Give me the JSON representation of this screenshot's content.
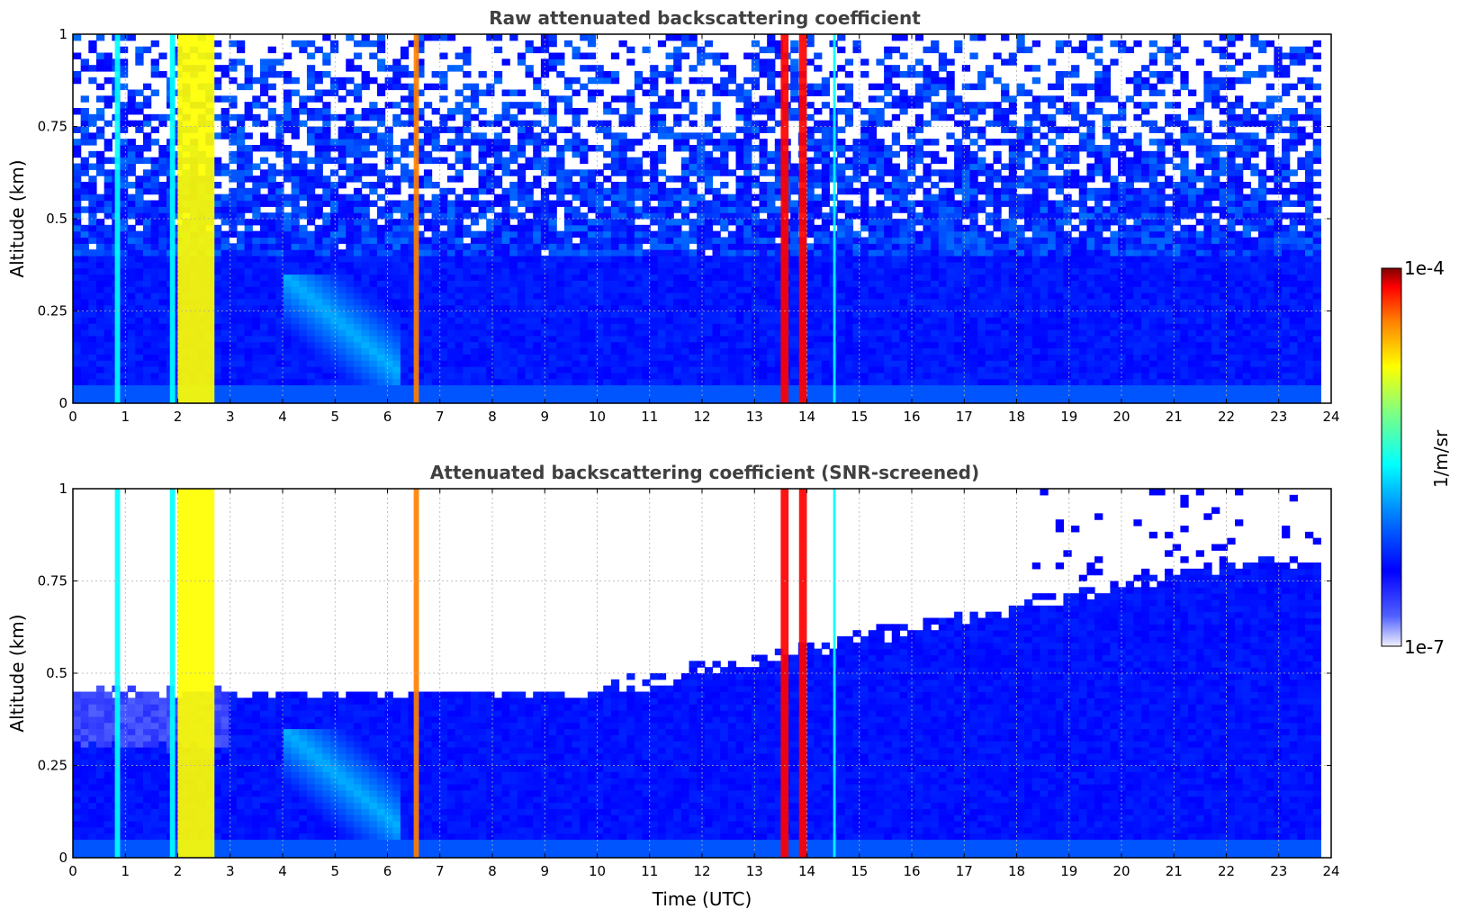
{
  "chart_data": [
    {
      "type": "heatmap",
      "id": "raw",
      "title": "Raw attenuated backscattering coefficient",
      "xlabel": "",
      "ylabel": "Altitude (km)",
      "xlim": [
        0,
        24
      ],
      "ylim": [
        0,
        1
      ],
      "xticks": [
        0,
        1,
        2,
        3,
        4,
        5,
        6,
        7,
        8,
        9,
        10,
        11,
        12,
        13,
        14,
        15,
        16,
        17,
        18,
        19,
        20,
        21,
        22,
        23,
        24
      ],
      "yticks": [
        0,
        0.25,
        0.5,
        0.75,
        1
      ],
      "ytick_labels": [
        "0",
        "0.25",
        "0.5",
        "0.75",
        "1"
      ],
      "grid": true,
      "noise_top_ratio": 1.0,
      "features": [
        {
          "x": 0.8,
          "width": 0.1,
          "value": "cyan"
        },
        {
          "x": 1.85,
          "width": 0.1,
          "value": "cyan"
        },
        {
          "x": 2.0,
          "width": 0.7,
          "value": "yellow"
        },
        {
          "x": 6.5,
          "width": 0.1,
          "value": "orange"
        },
        {
          "x": 13.5,
          "width": 0.15,
          "value": "red"
        },
        {
          "x": 13.85,
          "width": 0.15,
          "value": "red"
        },
        {
          "x": 14.5,
          "width": 0.05,
          "value": "cyan"
        }
      ]
    },
    {
      "type": "heatmap",
      "id": "screened",
      "title": "Attenuated backscattering coefficient (SNR-screened)",
      "xlabel": "Time (UTC)",
      "ylabel": "Altitude (km)",
      "xlim": [
        0,
        24
      ],
      "ylim": [
        0,
        1
      ],
      "xticks": [
        0,
        1,
        2,
        3,
        4,
        5,
        6,
        7,
        8,
        9,
        10,
        11,
        12,
        13,
        14,
        15,
        16,
        17,
        18,
        19,
        20,
        21,
        22,
        23,
        24
      ],
      "yticks": [
        0,
        0.25,
        0.5,
        0.75,
        1
      ],
      "ytick_labels": [
        "0",
        "0.25",
        "0.5",
        "0.75",
        "1"
      ],
      "grid": true,
      "features": [
        {
          "x": 0.8,
          "width": 0.1,
          "value": "cyan"
        },
        {
          "x": 1.85,
          "width": 0.1,
          "value": "cyan"
        },
        {
          "x": 2.0,
          "width": 0.7,
          "value": "yellow"
        },
        {
          "x": 6.5,
          "width": 0.1,
          "value": "orange"
        },
        {
          "x": 13.5,
          "width": 0.15,
          "value": "red"
        },
        {
          "x": 13.85,
          "width": 0.15,
          "value": "red"
        },
        {
          "x": 14.5,
          "width": 0.05,
          "value": "cyan"
        }
      ]
    }
  ],
  "colorbar": {
    "label": "1/m/sr",
    "max_label": "1e-4",
    "min_label": "1e-7",
    "scale": "log",
    "colormap": "jet"
  }
}
